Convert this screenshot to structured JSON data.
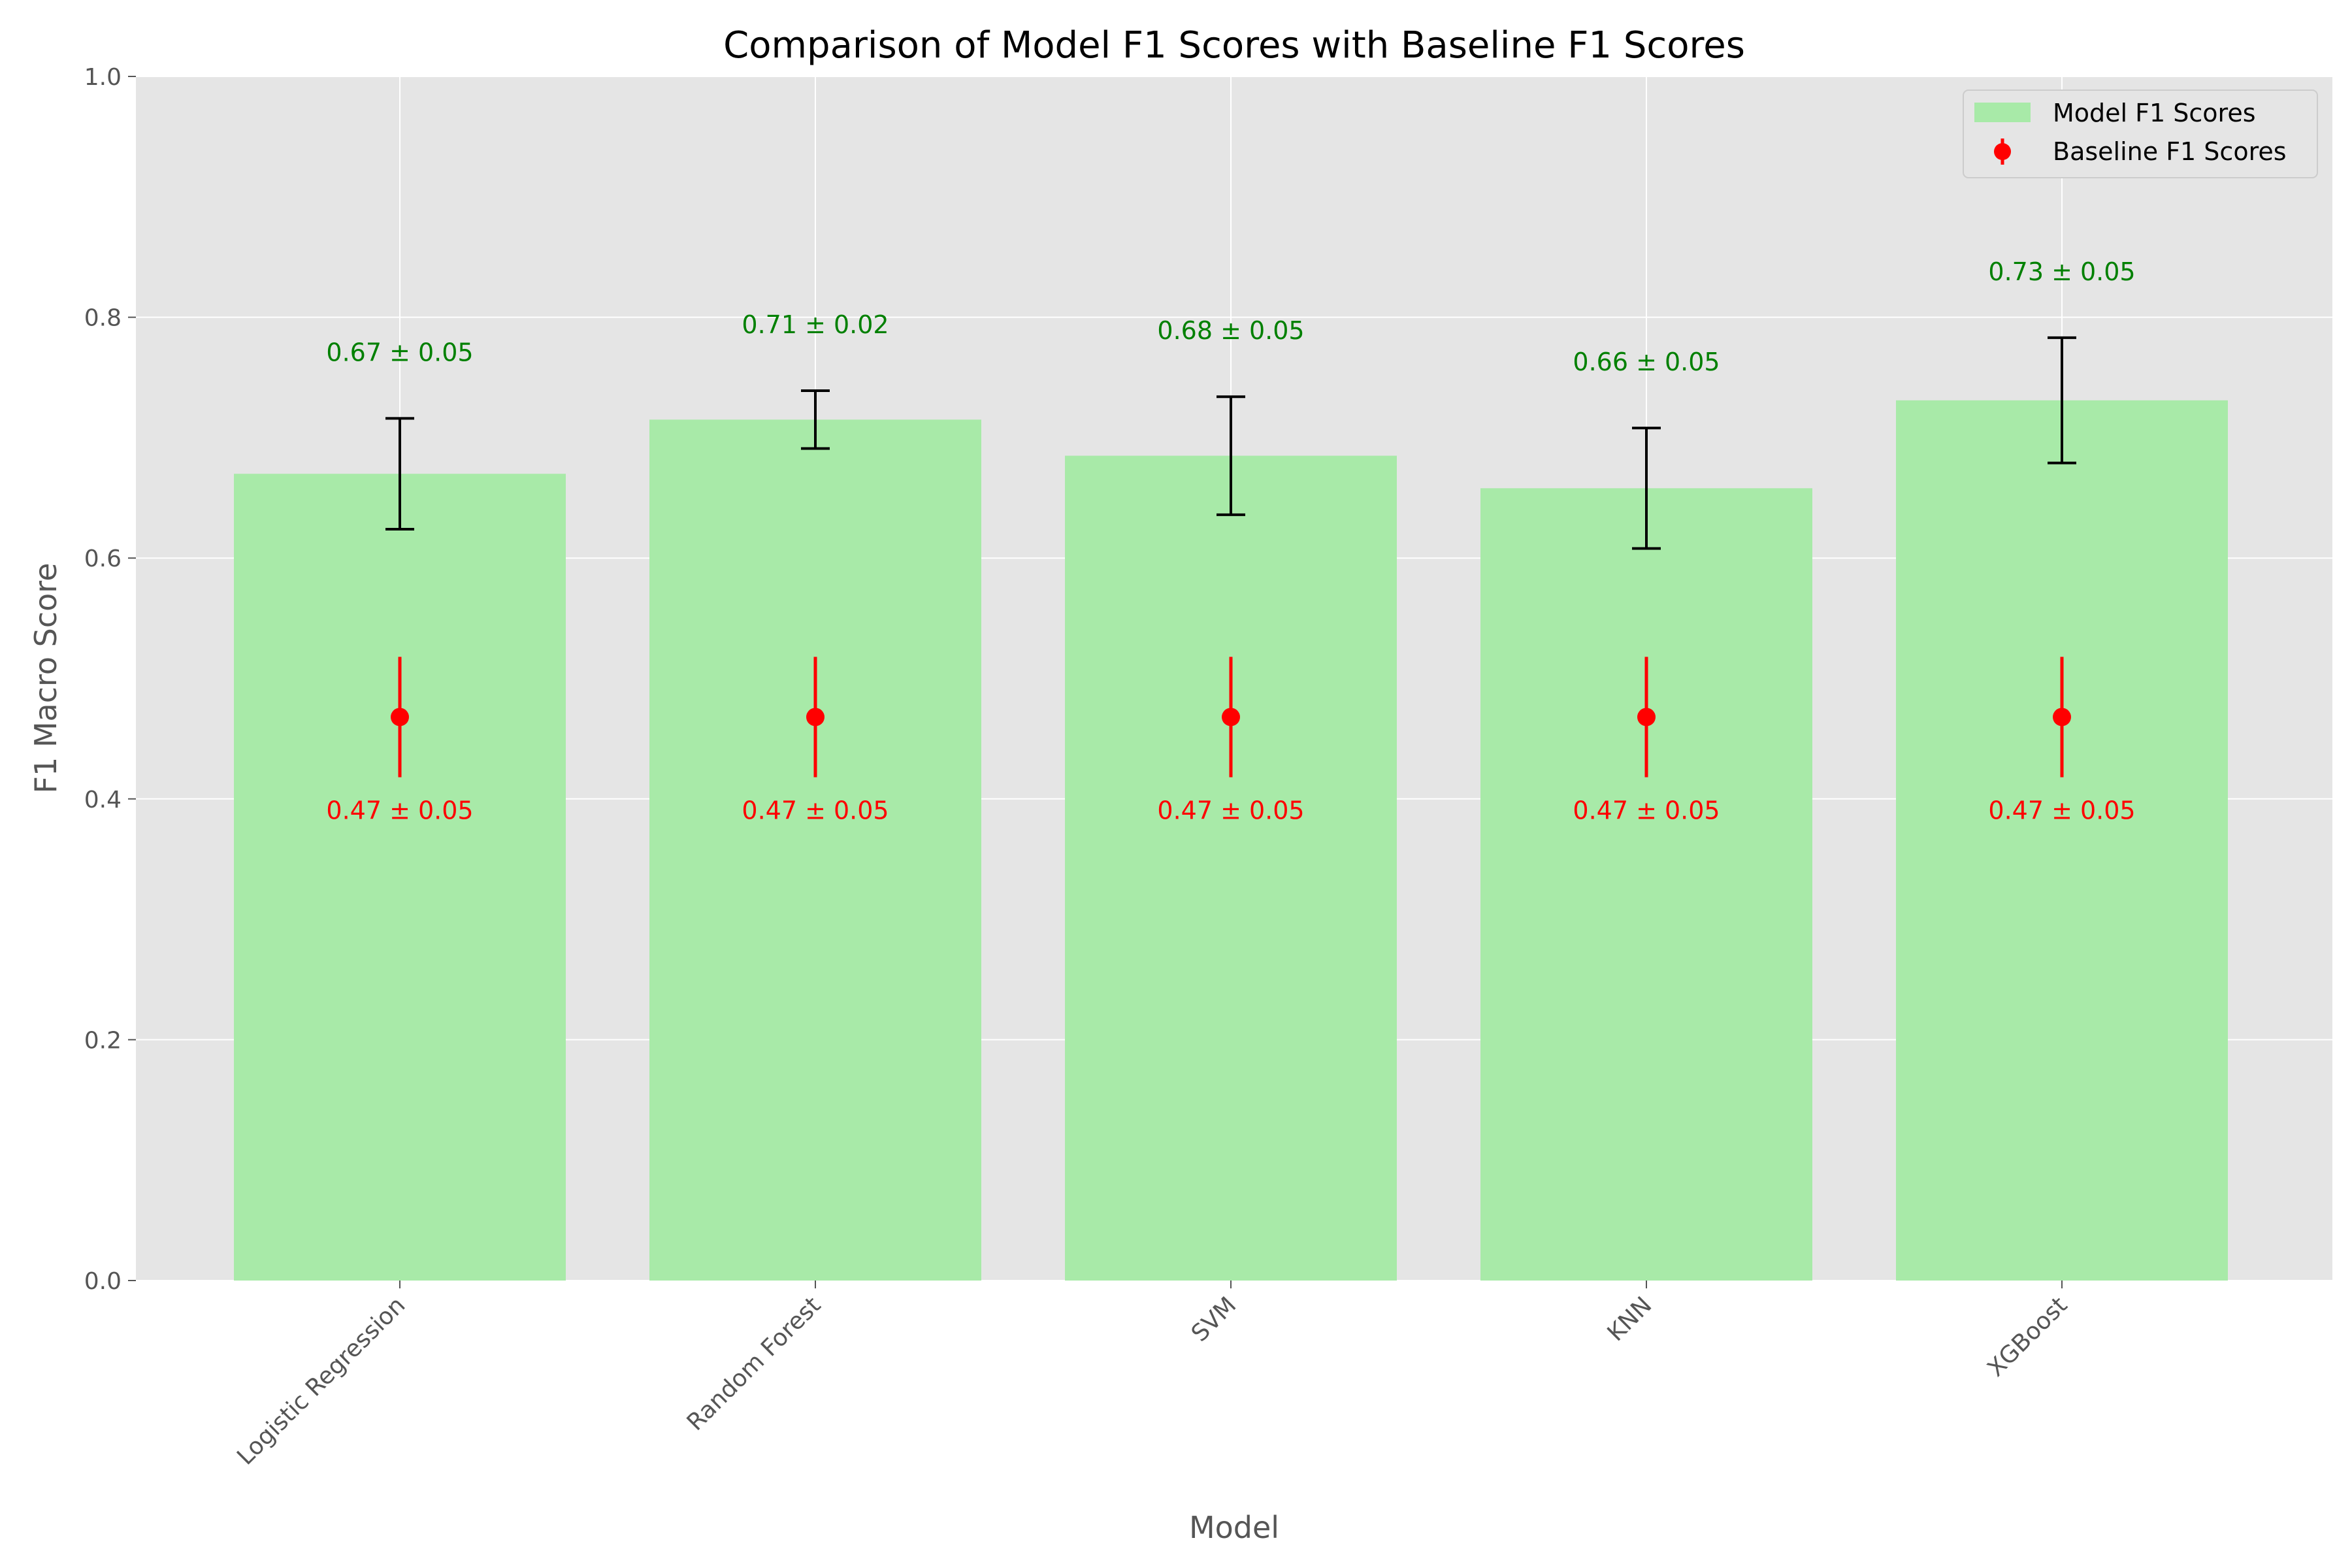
{
  "chart_data": {
    "type": "bar",
    "title": "Comparison of Model F1 Scores with Baseline F1 Scores",
    "xlabel": "Model",
    "ylabel": "F1 Macro Score",
    "ylim": [
      0,
      1.0
    ],
    "yticks": [
      "0.0",
      "0.2",
      "0.4",
      "0.6",
      "0.8",
      "1.0"
    ],
    "categories": [
      "Logistic Regression",
      "Random Forest",
      "SVM",
      "KNN",
      "XGBoost"
    ],
    "grid": true,
    "legend_position": "top-right",
    "series": [
      {
        "name": "Model F1 Scores",
        "kind": "bar",
        "color": "#a8eaa8",
        "values": [
          0.67,
          0.715,
          0.685,
          0.658,
          0.731
        ],
        "errors": [
          0.046,
          0.024,
          0.049,
          0.05,
          0.052
        ],
        "labels": [
          "0.67 ± 0.05",
          "0.71 ± 0.02",
          "0.68 ± 0.05",
          "0.66 ± 0.05",
          "0.73 ± 0.05"
        ],
        "label_color": "#008000",
        "error_color": "#000000"
      },
      {
        "name": "Baseline F1 Scores",
        "kind": "errorbar",
        "color": "#ff0000",
        "values": [
          0.468,
          0.468,
          0.468,
          0.468,
          0.468
        ],
        "errors": [
          0.05,
          0.05,
          0.05,
          0.05,
          0.05
        ],
        "labels": [
          "0.47 ± 0.05",
          "0.47 ± 0.05",
          "0.47 ± 0.05",
          "0.47 ± 0.05",
          "0.47 ± 0.05"
        ],
        "label_color": "#ff0000"
      }
    ]
  }
}
